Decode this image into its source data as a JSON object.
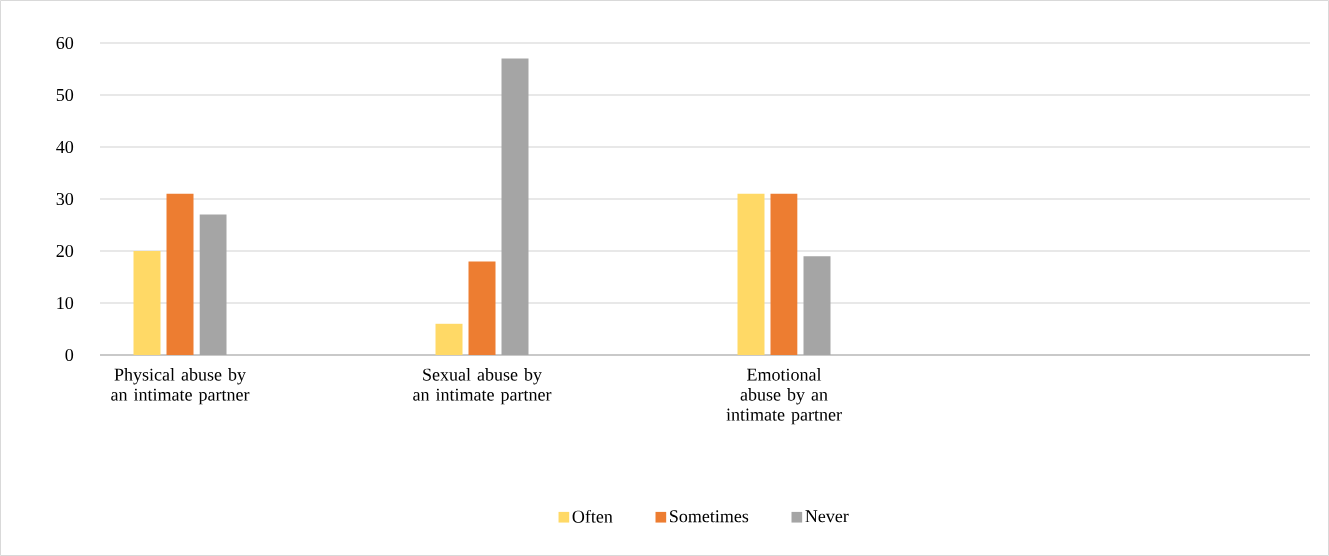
{
  "chart_data": {
    "type": "bar",
    "categories": [
      "Physical abuse by an intimate partner",
      "Sexual abuse by an intimate partner",
      "Emotional abuse by an intimate partner",
      null
    ],
    "series": [
      {
        "name": "Often",
        "color": "#ffd966",
        "values": [
          20,
          6,
          31,
          null
        ]
      },
      {
        "name": "Sometimes",
        "color": "#ed7d31",
        "values": [
          31,
          18,
          31,
          null
        ]
      },
      {
        "name": "Never",
        "color": "#a5a5a5",
        "values": [
          27,
          57,
          19,
          null
        ]
      }
    ],
    "ylim": [
      0,
      60
    ],
    "yticks": [
      0,
      10,
      20,
      30,
      40,
      50,
      60
    ],
    "grid": "y",
    "legend": "bottom"
  }
}
